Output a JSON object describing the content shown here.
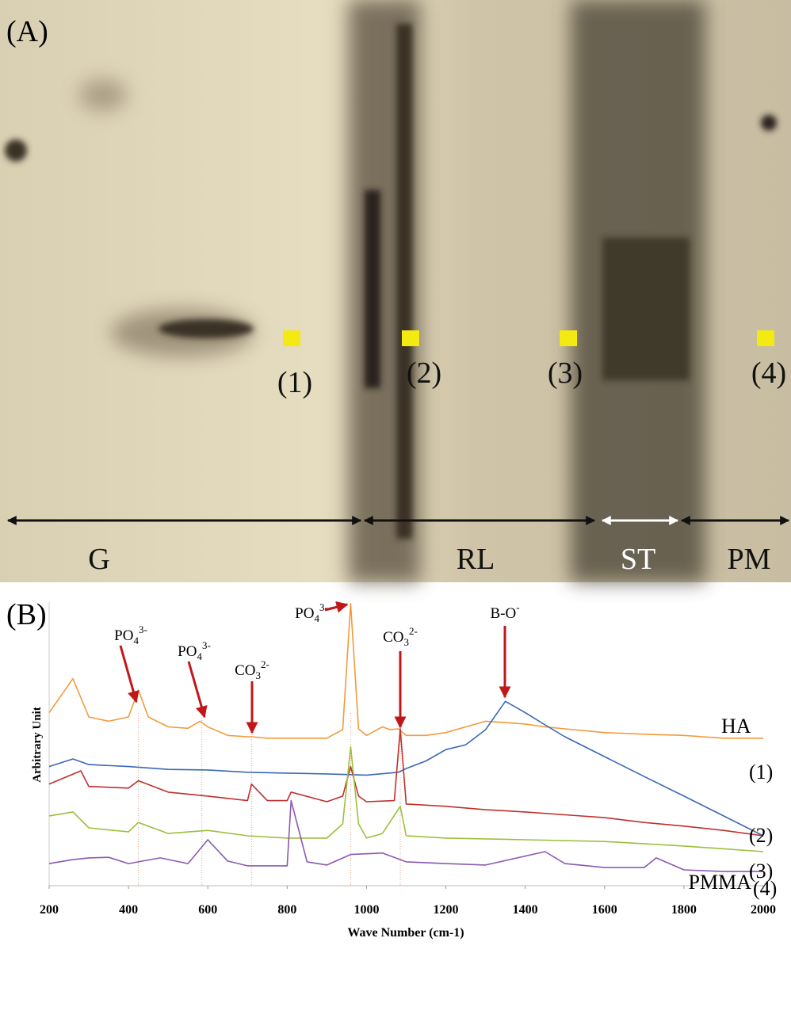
{
  "panel_a": {
    "label": "(A)",
    "points": [
      "(1)",
      "(2)",
      "(3)",
      "(4)"
    ],
    "regions": [
      "G",
      "RL",
      "ST",
      "PM"
    ]
  },
  "chart_data": {
    "type": "line",
    "panel_label": "(B)",
    "x_label": "Wave Number (cm-1)",
    "y_label": "Arbitrary Unit",
    "xlim": [
      200,
      2000
    ],
    "xticks": [
      200,
      400,
      600,
      800,
      1000,
      1200,
      1400,
      1600,
      1800,
      2000
    ],
    "ylim": [
      0,
      100
    ],
    "series": [
      {
        "name": "HA",
        "color": "#f39a3a",
        "x": [
          200,
          260,
          300,
          350,
          400,
          425,
          450,
          500,
          550,
          580,
          600,
          650,
          700,
          710,
          750,
          800,
          850,
          900,
          940,
          960,
          980,
          1000,
          1040,
          1060,
          1080,
          1100,
          1150,
          1200,
          1250,
          1300,
          1350,
          1400,
          1450,
          1500,
          1600,
          1700,
          1800,
          1900,
          2000
        ],
        "values": [
          61,
          73,
          59.5,
          58,
          59.5,
          69,
          59.5,
          56,
          55.5,
          58,
          56,
          53,
          52.5,
          52.5,
          52,
          52,
          52,
          52,
          55,
          99.4,
          55.3,
          53,
          56,
          55,
          55.3,
          53,
          53,
          54,
          56,
          58,
          57.5,
          57,
          56,
          55.3,
          54,
          53.4,
          53,
          52,
          52
        ]
      },
      {
        "name": "(1)",
        "color": "#3a68b8",
        "x": [
          200,
          260,
          300,
          400,
          500,
          600,
          700,
          800,
          900,
          1000,
          1080,
          1100,
          1150,
          1200,
          1250,
          1300,
          1350,
          1400,
          1450,
          1500,
          1600,
          1700,
          1800,
          1900,
          2000
        ],
        "values": [
          42,
          44.7,
          42.7,
          42,
          41,
          40.8,
          40,
          39.7,
          39.4,
          39,
          40,
          41.3,
          44,
          48,
          49.7,
          55,
          65,
          61,
          56.7,
          52.5,
          45.5,
          38.5,
          31.6,
          24.6,
          17.6
        ]
      },
      {
        "name": "(2)",
        "color": "#c0302c",
        "x": [
          200,
          280,
          300,
          400,
          425,
          500,
          600,
          700,
          710,
          750,
          800,
          810,
          900,
          940,
          960,
          980,
          1000,
          1070,
          1085,
          1100,
          1200,
          1300,
          1400,
          1500,
          1600,
          1700,
          1800,
          1900,
          2000
        ],
        "values": [
          35.8,
          40.5,
          35,
          34.4,
          37,
          33,
          31.6,
          30,
          35.8,
          30,
          30,
          33,
          29.6,
          31.6,
          42,
          31.6,
          29.6,
          30,
          55.3,
          28.8,
          28,
          26.8,
          26,
          25,
          24,
          22.3,
          21,
          19.5,
          17.6
        ]
      },
      {
        "name": "(3)",
        "color": "#9cbf3c",
        "x": [
          200,
          260,
          300,
          400,
          425,
          500,
          600,
          700,
          800,
          900,
          940,
          960,
          980,
          1000,
          1040,
          1085,
          1100,
          1200,
          1400,
          1600,
          1800,
          2000
        ],
        "values": [
          24.6,
          26,
          20.4,
          19,
          22.3,
          18.4,
          19.5,
          17.6,
          16.8,
          16.8,
          21.8,
          49,
          21.8,
          16.8,
          18.4,
          28,
          17.6,
          16.8,
          16.2,
          15.6,
          14,
          12
        ]
      },
      {
        "name": "PMMA",
        "color": "#8a5ab0",
        "x": [
          200,
          260,
          300,
          350,
          400,
          480,
          550,
          600,
          650,
          700,
          800,
          810,
          850,
          900,
          960,
          1040,
          1100,
          1200,
          1300,
          1450,
          1500,
          1600,
          1700,
          1730,
          1800,
          1900,
          2000
        ],
        "values": [
          7.8,
          9.2,
          9.8,
          10,
          7.8,
          9.8,
          7.8,
          16.2,
          8.7,
          7,
          7,
          30,
          8.4,
          7.3,
          11,
          11.5,
          8.4,
          7.8,
          7.3,
          12,
          7.8,
          6.4,
          6.4,
          9.8,
          5.6,
          5,
          5
        ]
      }
    ],
    "extra_label": "(4)",
    "annotations": [
      {
        "base": "PO",
        "sub": "4",
        "sup": "3-",
        "x": 425
      },
      {
        "base": "PO",
        "sub": "4",
        "sup": "3-",
        "x": 585
      },
      {
        "base": "CO",
        "sub": "3",
        "sup": "2-",
        "x": 710
      },
      {
        "base": "PO",
        "sub": "4",
        "sup": "3-",
        "x": 960
      },
      {
        "base": "CO",
        "sub": "3",
        "sup": "2-",
        "x": 1085
      },
      {
        "base": "B-O",
        "sup": "-",
        "x": 1350
      }
    ]
  }
}
